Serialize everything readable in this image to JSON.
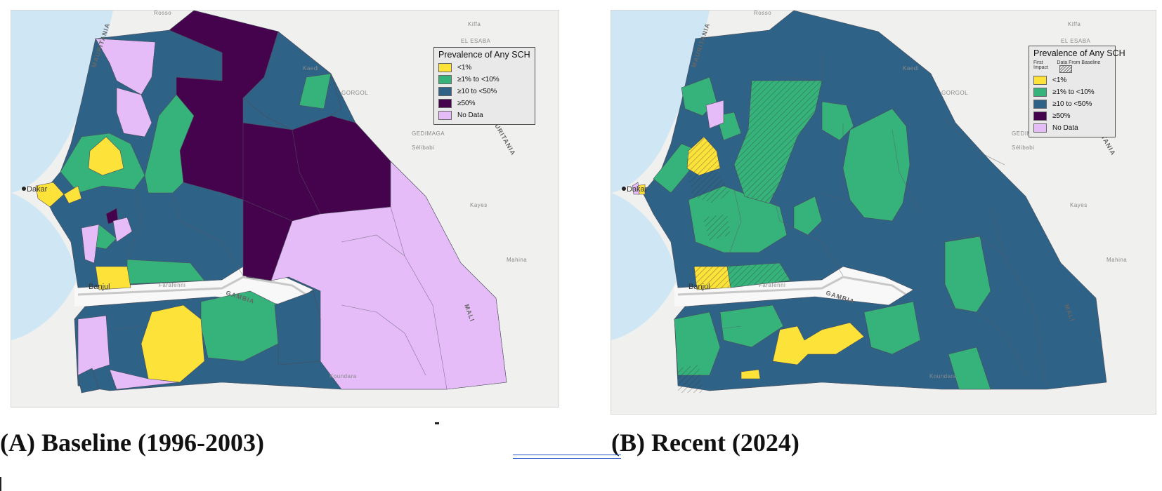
{
  "colors": {
    "lt1": "#fde23a",
    "g1_10": "#36b37b",
    "g10_50": "#2e6286",
    "g50": "#45034e",
    "nodata": "#e5bcf7",
    "sea": "#cfe7f5",
    "land": "#f0f0ef",
    "gambia": "#f8f8f8"
  },
  "labels": {
    "dakar": "Dakar",
    "banjul": "Banjul",
    "gambia": "GAMBIA",
    "mauritania_w": "MAURITANIA",
    "mauritania_e": "MAURITANIA",
    "mali": "MALI",
    "rosso": "Rosso",
    "kaedi": "Kaedi",
    "kiffa": "Kiffa",
    "el_esaba": "EL ESABA",
    "gorgol": "GORGOL",
    "guidimaga": "GEDIMAGA",
    "selibabi": "Sélibabi",
    "kayes": "Kayes",
    "mahina": "Mahina",
    "koundara": "Koundara",
    "farafenni": "Farafenni"
  },
  "panelA": {
    "legend": {
      "title": "Prevalence of Any SCH",
      "items": [
        "<1%",
        "≥1% to <10%",
        "≥10 to <50%",
        "≥50%",
        "No Data"
      ]
    },
    "caption": "(A) Baseline (1996-2003)"
  },
  "panelB": {
    "legend": {
      "title": "Prevalence of Any SCH",
      "sub_left": "First Impact",
      "sub_right": "Data From Baseline",
      "items": [
        "<1%",
        "≥1% to <10%",
        "≥10 to <50%",
        "≥50%",
        "No Data"
      ]
    },
    "caption": "(B) Recent (2024)"
  }
}
